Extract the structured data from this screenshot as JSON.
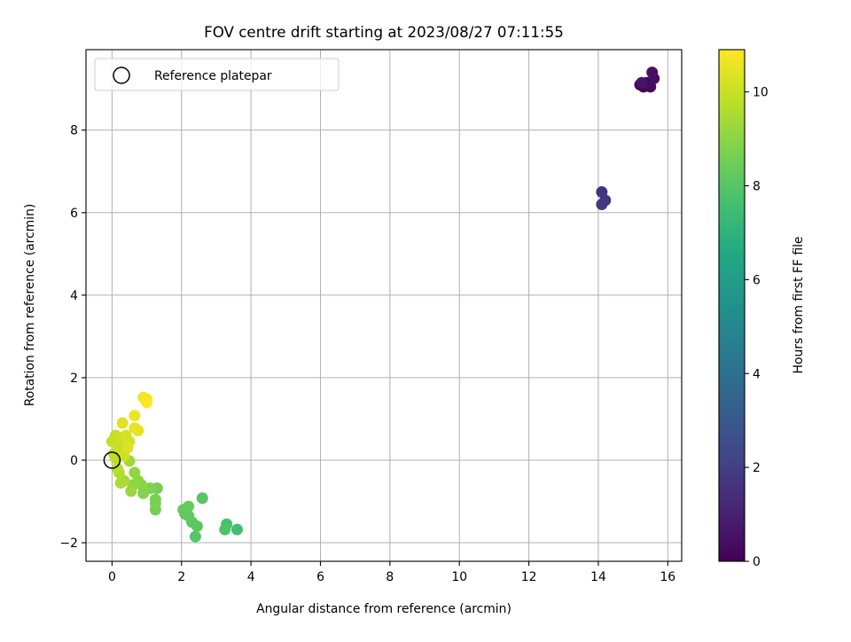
{
  "chart_data": {
    "type": "scatter",
    "title": "FOV centre drift starting at 2023/08/27 07:11:55",
    "xlabel": "Angular distance from reference (arcmin)",
    "ylabel": "Rotation from reference (arcmin)",
    "xlim": [
      -0.75,
      16.4
    ],
    "ylim": [
      -2.45,
      9.95
    ],
    "xticks": [
      0,
      2,
      4,
      6,
      8,
      10,
      12,
      14,
      16
    ],
    "yticks": [
      -2,
      0,
      2,
      4,
      6,
      8
    ],
    "grid": true,
    "legend": {
      "placement": "top-left",
      "entries": [
        "Reference platepar"
      ]
    },
    "reference_point": {
      "label": "Reference platepar",
      "x": 0,
      "y": 0
    },
    "colorbar": {
      "label": "Hours from first FF file",
      "range": [
        0,
        10.9
      ],
      "ticks": [
        0,
        2,
        4,
        6,
        8,
        10
      ],
      "colormap": "viridis"
    },
    "points": [
      {
        "x": 15.2,
        "y": 9.1,
        "t": 0.0
      },
      {
        "x": 15.3,
        "y": 9.05,
        "t": 0.1
      },
      {
        "x": 15.4,
        "y": 9.15,
        "t": 0.2
      },
      {
        "x": 15.5,
        "y": 9.05,
        "t": 0.3
      },
      {
        "x": 15.6,
        "y": 9.25,
        "t": 0.4
      },
      {
        "x": 15.55,
        "y": 9.4,
        "t": 0.5
      },
      {
        "x": 15.25,
        "y": 9.15,
        "t": 0.6
      },
      {
        "x": 14.1,
        "y": 6.5,
        "t": 1.6
      },
      {
        "x": 14.2,
        "y": 6.3,
        "t": 1.7
      },
      {
        "x": 14.1,
        "y": 6.2,
        "t": 1.8
      },
      {
        "x": 3.6,
        "y": -1.68,
        "t": 7.6
      },
      {
        "x": 3.3,
        "y": -1.55,
        "t": 7.7
      },
      {
        "x": 3.25,
        "y": -1.68,
        "t": 7.8
      },
      {
        "x": 2.6,
        "y": -0.92,
        "t": 8.0
      },
      {
        "x": 2.4,
        "y": -1.85,
        "t": 8.0
      },
      {
        "x": 2.45,
        "y": -1.6,
        "t": 8.1
      },
      {
        "x": 2.3,
        "y": -1.5,
        "t": 8.1
      },
      {
        "x": 2.2,
        "y": -1.35,
        "t": 8.2
      },
      {
        "x": 2.1,
        "y": -1.3,
        "t": 8.2
      },
      {
        "x": 2.05,
        "y": -1.2,
        "t": 8.3
      },
      {
        "x": 2.2,
        "y": -1.12,
        "t": 8.3
      },
      {
        "x": 1.3,
        "y": -0.68,
        "t": 8.6
      },
      {
        "x": 1.25,
        "y": -1.2,
        "t": 8.6
      },
      {
        "x": 1.25,
        "y": -1.05,
        "t": 8.7
      },
      {
        "x": 1.25,
        "y": -0.95,
        "t": 8.7
      },
      {
        "x": 1.1,
        "y": -0.68,
        "t": 8.8
      },
      {
        "x": 0.9,
        "y": -0.8,
        "t": 8.9
      },
      {
        "x": 0.85,
        "y": -0.6,
        "t": 9.0
      },
      {
        "x": 0.75,
        "y": -0.5,
        "t": 9.0
      },
      {
        "x": 0.65,
        "y": -0.3,
        "t": 9.1
      },
      {
        "x": 0.6,
        "y": -0.6,
        "t": 9.1
      },
      {
        "x": 0.55,
        "y": -0.75,
        "t": 9.2
      },
      {
        "x": 0.5,
        "y": -0.02,
        "t": 9.3
      },
      {
        "x": 0.35,
        "y": -0.5,
        "t": 9.4
      },
      {
        "x": 0.25,
        "y": -0.55,
        "t": 9.5
      },
      {
        "x": 0.2,
        "y": -0.3,
        "t": 9.6
      },
      {
        "x": 0.15,
        "y": -0.2,
        "t": 9.7
      },
      {
        "x": 0.1,
        "y": 0.05,
        "t": 9.8
      },
      {
        "x": 0.05,
        "y": 0.15,
        "t": 9.8
      },
      {
        "x": 0.0,
        "y": 0.45,
        "t": 9.9
      },
      {
        "x": 0.1,
        "y": 0.6,
        "t": 9.9
      },
      {
        "x": 0.2,
        "y": 0.3,
        "t": 10.0
      },
      {
        "x": 0.3,
        "y": 0.4,
        "t": 10.0
      },
      {
        "x": 0.35,
        "y": 0.1,
        "t": 10.1
      },
      {
        "x": 0.25,
        "y": 0.55,
        "t": 10.1
      },
      {
        "x": 0.4,
        "y": 0.6,
        "t": 10.2
      },
      {
        "x": 0.5,
        "y": 0.45,
        "t": 10.2
      },
      {
        "x": 0.45,
        "y": 0.3,
        "t": 10.3
      },
      {
        "x": 0.3,
        "y": 0.9,
        "t": 10.4
      },
      {
        "x": 0.65,
        "y": 0.78,
        "t": 10.5
      },
      {
        "x": 0.75,
        "y": 0.72,
        "t": 10.5
      },
      {
        "x": 0.65,
        "y": 1.08,
        "t": 10.6
      },
      {
        "x": 0.9,
        "y": 1.52,
        "t": 10.7
      },
      {
        "x": 1.0,
        "y": 1.48,
        "t": 10.8
      },
      {
        "x": 1.0,
        "y": 1.4,
        "t": 10.9
      }
    ]
  }
}
